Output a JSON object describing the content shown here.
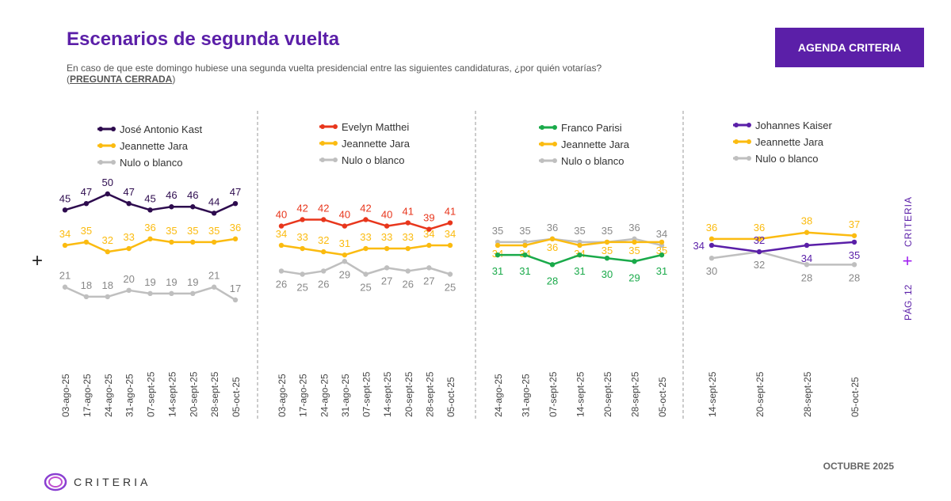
{
  "header": {
    "title": "Escenarios de segunda vuelta",
    "subtitle": "En caso de que este domingo hubiese una segunda vuelta presidencial entre las siguientes candidaturas, ¿por quién votarías?",
    "subtitle_note": "PREGUNTA CERRADA",
    "badge": "AGENDA CRITERIA"
  },
  "footer": {
    "month": "OCTUBRE 2025",
    "logo": "CRITERIA",
    "side_brand": "CRITERIA",
    "page": "PÁG. 12"
  },
  "colors": {
    "kast": "#2d0b4e",
    "matthei": "#e8361c",
    "parisi": "#1aaa4a",
    "kaiser": "#5a1fa8",
    "jara": "#fbbb10",
    "nulo": "#bfbfbf",
    "accent": "#5b1fa8"
  },
  "chart_data": [
    {
      "type": "line",
      "categories": [
        "03-ago-25",
        "17-ago-25",
        "24-ago-25",
        "31-ago-25",
        "07-sept-25",
        "14-sept-25",
        "20-sept-25",
        "28-sept-25",
        "05-oct-25"
      ],
      "series": [
        {
          "name": "José Antonio Kast",
          "color": "#2d0b4e",
          "label": "above",
          "values": [
            45,
            47,
            50,
            47,
            45,
            46,
            46,
            44,
            47
          ]
        },
        {
          "name": "Jeannette Jara",
          "color": "#fbbb10",
          "label": "above",
          "values": [
            34,
            35,
            32,
            33,
            36,
            35,
            35,
            35,
            36
          ]
        },
        {
          "name": "Nulo o blanco",
          "color": "#bfbfbf",
          "label": "above",
          "values": [
            21,
            18,
            18,
            20,
            19,
            19,
            19,
            21,
            17
          ]
        }
      ]
    },
    {
      "type": "line",
      "categories": [
        "03-ago-25",
        "17-ago-25",
        "24-ago-25",
        "31-ago-25",
        "07-sept-25",
        "14-sept-25",
        "20-sept-25",
        "28-sept-25",
        "05-oct-25"
      ],
      "series": [
        {
          "name": "Evelyn Matthei",
          "color": "#e8361c",
          "label": "above",
          "values": [
            40,
            42,
            42,
            40,
            42,
            40,
            41,
            39,
            41
          ]
        },
        {
          "name": "Jeannette Jara",
          "color": "#fbbb10",
          "label": "above",
          "values": [
            34,
            33,
            32,
            31,
            33,
            33,
            33,
            34,
            34
          ]
        },
        {
          "name": "Nulo o blanco",
          "color": "#bfbfbf",
          "label": "below",
          "values": [
            26,
            25,
            26,
            29,
            25,
            27,
            26,
            27,
            25
          ]
        }
      ]
    },
    {
      "type": "line",
      "categories": [
        "24-ago-25",
        "31-ago-25",
        "07-sept-25",
        "14-sept-25",
        "20-sept-25",
        "28-sept-25",
        "05-oct-25"
      ],
      "series": [
        {
          "name": "Franco Parisi",
          "color": "#1aaa4a",
          "label": "below",
          "values": [
            31,
            31,
            28,
            31,
            30,
            29,
            31
          ]
        },
        {
          "name": "Jeannette Jara",
          "color": "#fbbb10",
          "label": "below",
          "values": [
            34,
            34,
            36,
            34,
            35,
            35,
            35
          ]
        },
        {
          "name": "Nulo o blanco",
          "color": "#bfbfbf",
          "label": "above",
          "values": [
            35,
            35,
            36,
            35,
            35,
            36,
            34
          ]
        }
      ]
    },
    {
      "type": "line",
      "categories": [
        "14-sept-25",
        "20-sept-25",
        "28-sept-25",
        "05-oct-25"
      ],
      "series": [
        {
          "name": "Johannes Kaiser",
          "color": "#5a1fa8",
          "label": "below",
          "values": [
            34,
            32,
            34,
            35
          ]
        },
        {
          "name": "Jeannette Jara",
          "color": "#fbbb10",
          "label": "above",
          "values": [
            36,
            36,
            38,
            37
          ]
        },
        {
          "name": "Nulo o blanco",
          "color": "#bfbfbf",
          "label": "below",
          "values": [
            30,
            32,
            28,
            28
          ]
        }
      ]
    }
  ]
}
